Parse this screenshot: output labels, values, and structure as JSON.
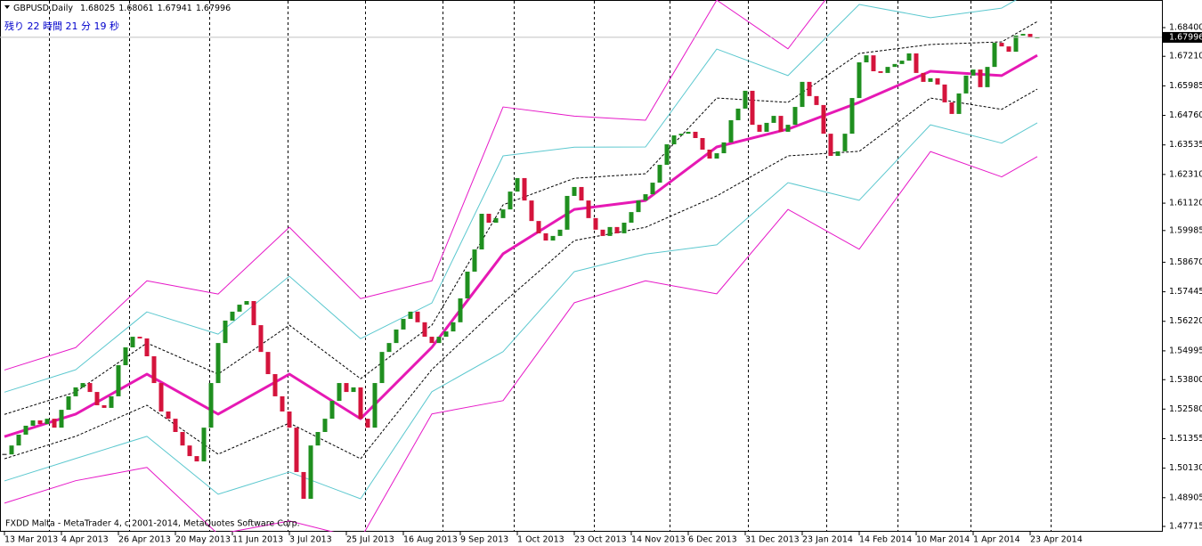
{
  "chart_data": {
    "type": "candlestick",
    "symbol": "GBPUSD,Daily",
    "ohlc": [
      1.68025,
      1.68061,
      1.67941,
      1.67996
    ],
    "timer": "残り 22 時間 21 分 19 秒",
    "footer": "FXDD Malta - MetaTrader 4, c 2001-2014, MetaQuotes Software Corp.",
    "current_price": 1.67996,
    "up_color": "#1f8f1f",
    "down_color": "#d4143c",
    "ylim": [
      1.47493,
      1.69545
    ],
    "yticks": [
      {
        "value": 1.684,
        "label": "1.68400"
      },
      {
        "value": 1.6721,
        "label": "1.67210"
      },
      {
        "value": 1.65985,
        "label": "1.65985"
      },
      {
        "value": 1.6476,
        "label": "1.64760"
      },
      {
        "value": 1.63535,
        "label": "1.63535"
      },
      {
        "value": 1.6231,
        "label": "1.62310"
      },
      {
        "value": 1.6112,
        "label": "1.61120"
      },
      {
        "value": 1.59985,
        "label": "1.59985"
      },
      {
        "value": 1.5867,
        "label": "1.58670"
      },
      {
        "value": 1.57445,
        "label": "1.57445"
      },
      {
        "value": 1.5622,
        "label": "1.56220"
      },
      {
        "value": 1.54995,
        "label": "1.54995"
      },
      {
        "value": 1.538,
        "label": "1.53800"
      },
      {
        "value": 1.5258,
        "label": "1.52580"
      },
      {
        "value": 1.51355,
        "label": "1.51355"
      },
      {
        "value": 1.5013,
        "label": "1.50130"
      },
      {
        "value": 1.48905,
        "label": "1.48905"
      },
      {
        "value": 1.47715,
        "label": "1.47715"
      }
    ],
    "xticks": [
      {
        "value": 0,
        "label": "13 Mar 2013"
      },
      {
        "value": 8,
        "label": "4 Apr 2013"
      },
      {
        "value": 16,
        "label": "26 Apr 2013"
      },
      {
        "value": 24,
        "label": "20 May 2013"
      },
      {
        "value": 32,
        "label": "11 Jun 2013"
      },
      {
        "value": 40,
        "label": "3 Jul 2013"
      },
      {
        "value": 48,
        "label": "25 Jul 2013"
      },
      {
        "value": 56,
        "label": "16 Aug 2013"
      },
      {
        "value": 64,
        "label": "9 Sep 2013"
      },
      {
        "value": 72,
        "label": "1 Oct 2013"
      },
      {
        "value": 80,
        "label": "23 Oct 2013"
      },
      {
        "value": 88,
        "label": "14 Nov 2013"
      },
      {
        "value": 96,
        "label": "6 Dec 2013"
      },
      {
        "value": 104,
        "label": "31 Dec 2013"
      },
      {
        "value": 112,
        "label": "23 Jan 2014"
      },
      {
        "value": 120,
        "label": "14 Feb 2014"
      },
      {
        "value": 128,
        "label": "10 Mar 2014"
      },
      {
        "value": 136,
        "label": "1 Apr 2014"
      },
      {
        "value": 144,
        "label": "23 Apr 2014"
      }
    ],
    "candles": {
      "close": [
        1.507,
        1.5107,
        1.5152,
        1.5189,
        1.5211,
        1.5196,
        1.5218,
        1.5181,
        1.5255,
        1.5311,
        1.5348,
        1.5366,
        1.5329,
        1.5274,
        1.5263,
        1.5311,
        1.544,
        1.5514,
        1.5558,
        1.5551,
        1.5477,
        1.5366,
        1.5248,
        1.5218,
        1.5163,
        1.5107,
        1.5063,
        1.5041,
        1.5181,
        1.5366,
        1.5532,
        1.5625,
        1.5662,
        1.5691,
        1.5706,
        1.5606,
        1.5495,
        1.5403,
        1.5311,
        1.5248,
        1.5181,
        1.4997,
        1.4886,
        1.5107,
        1.5163,
        1.5218,
        1.5292,
        1.5366,
        1.5329,
        1.5348,
        1.5218,
        1.5181,
        1.5366,
        1.5495,
        1.5532,
        1.5588,
        1.5632,
        1.5662,
        1.5618,
        1.5558,
        1.5532,
        1.5558,
        1.558,
        1.5618,
        1.5717,
        1.5828,
        1.592,
        1.6068,
        1.6031,
        1.605,
        1.6086,
        1.616,
        1.6216,
        1.6123,
        1.6038,
        1.5987,
        1.5957,
        1.5976,
        1.6002,
        1.6142,
        1.6179,
        1.6123,
        1.605,
        1.6002,
        1.5976,
        1.6013,
        1.5987,
        1.6031,
        1.6075,
        1.6123,
        1.6149,
        1.6197,
        1.6271,
        1.6356,
        1.6393,
        1.64,
        1.6408,
        1.6382,
        1.6334,
        1.6297,
        1.6319,
        1.6364,
        1.6456,
        1.6504,
        1.6578,
        1.6437,
        1.6408,
        1.6445,
        1.6474,
        1.6408,
        1.6437,
        1.6511,
        1.6615,
        1.6556,
        1.6519,
        1.64,
        1.6308,
        1.6327,
        1.64,
        1.6548,
        1.6696,
        1.6725,
        1.6659,
        1.6652,
        1.6677,
        1.6689,
        1.6703,
        1.6733,
        1.6652,
        1.6615,
        1.663,
        1.6604,
        1.653,
        1.6482,
        1.6567,
        1.6641,
        1.6666,
        1.6593,
        1.6677,
        1.6777,
        1.6762,
        1.674,
        1.6807,
        1.6814,
        1.6799,
        1.67996
      ]
    },
    "bands": {
      "x": [
        0,
        10,
        20,
        30,
        40,
        50,
        60,
        70,
        80,
        90,
        100,
        110,
        120,
        130,
        140,
        145
      ],
      "series": [
        {
          "color": "#e619c8",
          "width": 1,
          "dash": false,
          "values": [
            1.542,
            1.5513,
            1.579,
            1.5735,
            1.6012,
            1.5716,
            1.579,
            1.6511,
            1.6473,
            1.6456,
            1.6954,
            1.6752,
            1.7139,
            1.6992,
            1.7061,
            1.7145
          ]
        },
        {
          "color": "#5cc8cf",
          "width": 1,
          "dash": false,
          "values": [
            1.5328,
            1.5421,
            1.5661,
            1.5569,
            1.5809,
            1.555,
            1.5698,
            1.6308,
            1.6344,
            1.6345,
            1.6751,
            1.6641,
            1.6936,
            1.6881,
            1.6921,
            1.7005
          ]
        },
        {
          "color": "#000000",
          "width": 1,
          "dash": true,
          "values": [
            1.5236,
            1.5329,
            1.5532,
            1.5403,
            1.5606,
            1.5384,
            1.5606,
            1.6105,
            1.6215,
            1.6234,
            1.6548,
            1.653,
            1.6733,
            1.677,
            1.6781,
            1.6865
          ]
        },
        {
          "color": "#e619b4",
          "width": 3,
          "dash": false,
          "values": [
            1.5144,
            1.5237,
            1.5403,
            1.5237,
            1.5403,
            1.5218,
            1.5514,
            1.5902,
            1.6086,
            1.6123,
            1.6345,
            1.6419,
            1.653,
            1.6659,
            1.6641,
            1.6725
          ]
        },
        {
          "color": "#000000",
          "width": 1,
          "dash": true,
          "values": [
            1.5052,
            1.5145,
            1.5274,
            1.5071,
            1.52,
            1.5052,
            1.5422,
            1.5699,
            1.5957,
            1.6012,
            1.6142,
            1.6308,
            1.6327,
            1.6548,
            1.6501,
            1.6585
          ]
        },
        {
          "color": "#5cc8cf",
          "width": 1,
          "dash": false,
          "values": [
            1.496,
            1.5053,
            1.5145,
            1.4905,
            1.4997,
            1.4886,
            1.533,
            1.5496,
            1.5828,
            1.5901,
            1.5939,
            1.6197,
            1.6124,
            1.6437,
            1.6361,
            1.6445
          ]
        },
        {
          "color": "#e619c8",
          "width": 1,
          "dash": false,
          "values": [
            1.4868,
            1.4961,
            1.5016,
            1.4739,
            1.4794,
            1.472,
            1.5238,
            1.5293,
            1.5699,
            1.579,
            1.5736,
            1.6086,
            1.5921,
            1.6326,
            1.6221,
            1.6305
          ]
        }
      ]
    }
  }
}
